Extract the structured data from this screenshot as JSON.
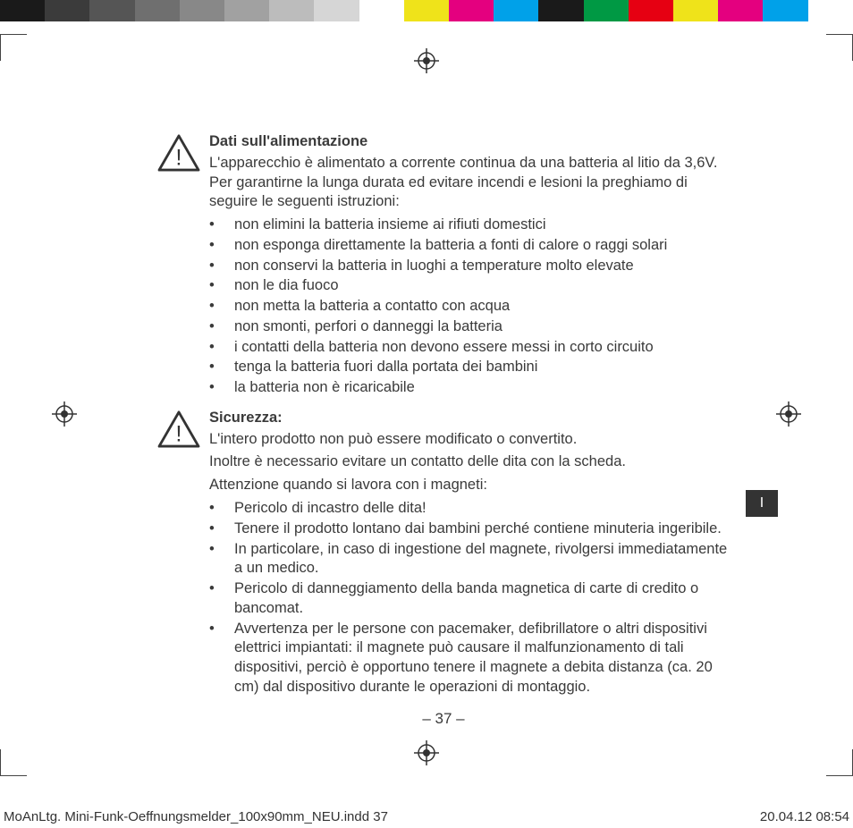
{
  "colorbar_colors": [
    "#1a1a1a",
    "#3b3b3b",
    "#555555",
    "#6f6f6f",
    "#888888",
    "#a1a1a1",
    "#bcbcbc",
    "#d6d6d6",
    "#ffffff",
    "#efe31a",
    "#e4007f",
    "#00a1e9",
    "#1a1a1a",
    "#009944",
    "#e60012",
    "#efe31a",
    "#e4007f",
    "#00a1e9",
    "#ffffff"
  ],
  "section1": {
    "heading": "Dati sull'alimentazione",
    "intro": "L'apparecchio è alimentato a corrente continua da una batteria al litio da 3,6V. Per garantirne la lunga durata ed evitare incendi e lesioni la preghiamo di seguire le seguenti istruzioni:",
    "items": [
      "non elimini la batteria insieme ai rifiuti domestici",
      "non esponga direttamente la batteria a fonti di calore o raggi solari",
      "non conservi la batteria in luoghi a temperature molto elevate",
      "non le dia fuoco",
      "non metta la batteria a contatto con acqua",
      "non smonti, perfori o danneggi la batteria",
      "i contatti della batteria non devono essere messi in corto circuito",
      "tenga la batteria fuori dalla portata dei bambini",
      "la batteria non è ricaricabile"
    ]
  },
  "section2": {
    "heading": "Sicurezza:",
    "intro1": "L'intero prodotto non può essere modificato o convertito.",
    "intro2": "Inoltre è necessario evitare un contatto delle dita con la scheda.",
    "subhead": "Attenzione quando si lavora con i magneti:",
    "items": [
      "Pericolo di incastro delle dita!",
      "Tenere il prodotto lontano dai bambini perché contiene minuteria ingeribile.",
      "In particolare, in caso di ingestione del magnete, rivolgersi immediatamente a un medico.",
      "Pericolo di danneggiamento della banda magnetica di carte di credito o bancomat.",
      "Avvertenza per le persone con pacemaker, defibrillatore o altri dispositivi elettrici impiantati: il magnete può causare il malfunzionamento di tali dispositivi, perciò è opportuno tenere il magnete a debita distanza (ca. 20 cm) dal dispositivo durante le operazioni di montaggio."
    ]
  },
  "page_number": "– 37 –",
  "side_tab": "I",
  "footer_left": "MoAnLtg. Mini-Funk-Oeffnungsmelder_100x90mm_NEU.indd   37",
  "footer_right": "20.04.12   08:54",
  "bullet_char": "•"
}
